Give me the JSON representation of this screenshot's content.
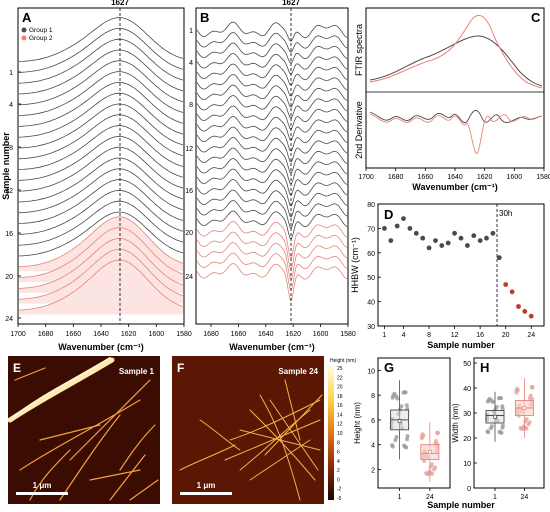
{
  "colors": {
    "group1": "#4a4a4a",
    "group2": "#e8837a",
    "group2_fill": "#f6cfcb",
    "group2_fill_light": "#fbe4e2",
    "accent": "#c0392b"
  },
  "panels": {
    "A": {
      "letter": "A",
      "top_label": "1627",
      "legend": [
        "Group 1",
        "Group 2"
      ],
      "ylabel": "Sample number",
      "ytick_labels": [
        "1",
        "4",
        "8",
        "12",
        "16",
        "20",
        "24"
      ],
      "xlabel": "Wavenumber (cm⁻¹)",
      "xtick_labels": [
        "1700",
        "1680",
        "1660",
        "1640",
        "1620",
        "1600",
        "1580"
      ]
    },
    "B": {
      "letter": "B",
      "top_label": "1627",
      "ytick_labels": [
        "1",
        "4",
        "8",
        "12",
        "16",
        "20",
        "24"
      ],
      "xlabel": "Wavenumber (cm⁻¹)",
      "xtick_labels": [
        "1680",
        "1660",
        "1640",
        "1620",
        "1600",
        "1580"
      ]
    },
    "C": {
      "letter": "C",
      "label_top": "FTIR spectra",
      "label_bottom": "2nd Derivative",
      "xlabel": "Wavenumber (cm⁻¹)",
      "xtick_labels": [
        "1700",
        "1680",
        "1660",
        "1640",
        "1620",
        "1600",
        "1580"
      ]
    },
    "D": {
      "letter": "D",
      "annotation": "30h",
      "ylabel": "HHBW (cm⁻¹)",
      "xlabel": "Sample number",
      "ytick_labels": [
        "30",
        "40",
        "50",
        "60",
        "70",
        "80"
      ],
      "xtick_labels": [
        "1",
        "4",
        "8",
        "12",
        "16",
        "20",
        "24"
      ]
    },
    "E": {
      "letter": "E",
      "sample_label": "Sample 1",
      "scale_label": "1 μm"
    },
    "F": {
      "letter": "F",
      "sample_label": "Sample 24",
      "scale_label": "1 μm",
      "colorbar_title": "Height (nm)",
      "colorbar_ticks": [
        "25",
        "22",
        "20",
        "18",
        "16",
        "14",
        "12",
        "10",
        "8",
        "6",
        "4",
        "2",
        "0",
        "-2",
        "-5"
      ]
    },
    "G": {
      "letter": "G",
      "ylabel": "Height (nm)",
      "ytick_labels": [
        "2",
        "4",
        "6",
        "8",
        "10"
      ],
      "xtick_labels": [
        "1",
        "24"
      ]
    },
    "H": {
      "letter": "H",
      "ylabel": "Width (nm)",
      "ytick_labels": [
        "0",
        "10",
        "20",
        "30",
        "40",
        "50"
      ],
      "xtick_labels": [
        "1",
        "24"
      ]
    },
    "GH_xlabel": "Sample number"
  },
  "chart_data": [
    {
      "type": "scatter",
      "panel": "D",
      "xlabel": "Sample number",
      "ylabel": "HHBW (cm⁻¹)",
      "ylim": [
        30,
        80
      ],
      "xlim": [
        0,
        26
      ],
      "series": [
        {
          "name": "Group 1",
          "x": [
            1,
            2,
            3,
            4,
            5,
            6,
            7,
            8,
            9,
            10,
            11,
            12,
            13,
            14,
            15,
            16,
            17,
            18,
            19
          ],
          "y": [
            70,
            65,
            71,
            74,
            70,
            68,
            66,
            62,
            65,
            63,
            64,
            68,
            66,
            63,
            67,
            65,
            66,
            68,
            58
          ]
        },
        {
          "name": "Group 2",
          "x": [
            20,
            21,
            22,
            23,
            24
          ],
          "y": [
            47,
            44,
            38,
            36,
            34
          ]
        }
      ]
    },
    {
      "type": "box",
      "panel": "G",
      "ylabel": "Height (nm)",
      "categories": [
        "1",
        "24"
      ],
      "boxes": [
        {
          "q1": 5.2,
          "median": 6.0,
          "q3": 6.8,
          "mean": 5.9
        },
        {
          "q1": 2.8,
          "median": 3.3,
          "q3": 4.0,
          "mean": 3.4
        }
      ]
    },
    {
      "type": "box",
      "panel": "H",
      "ylabel": "Width (nm)",
      "categories": [
        "1",
        "24"
      ],
      "boxes": [
        {
          "q1": 26,
          "median": 29,
          "q3": 31,
          "mean": 28.5
        },
        {
          "q1": 29,
          "median": 32,
          "q3": 35,
          "mean": 32
        }
      ]
    }
  ]
}
